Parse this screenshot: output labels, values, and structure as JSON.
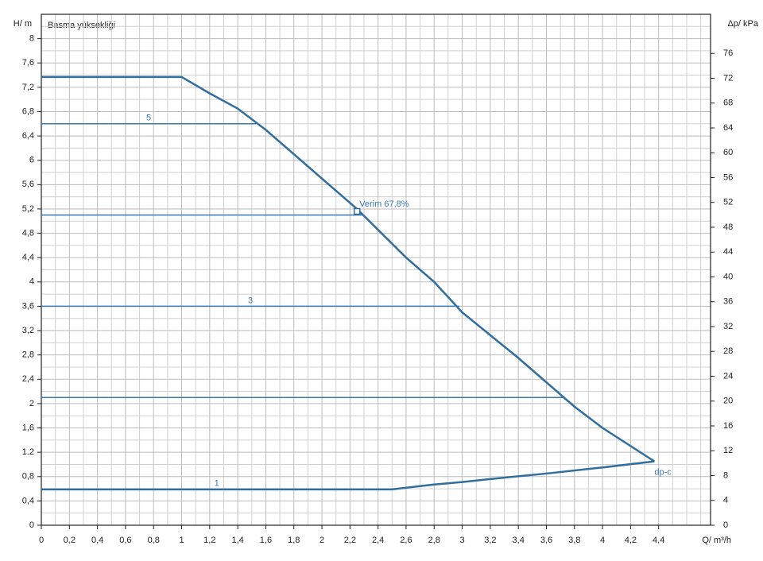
{
  "chart_data": {
    "type": "line",
    "title": "Basma yüksekliği",
    "x_label": "Q/ m³/h",
    "y_label": "H/ m",
    "y2_label": "Δp/ kPa",
    "xlim": [
      0,
      4.77
    ],
    "ylim": [
      0,
      8.4
    ],
    "y2lim": [
      0,
      82.3
    ],
    "grid": true,
    "xticks": [
      0,
      {
        "value": 0.2,
        "label": "0,2"
      },
      {
        "value": 0.4,
        "label": "0,4"
      },
      {
        "value": 0.6,
        "label": "0,6"
      },
      {
        "value": 0.8,
        "label": "0,8"
      },
      1,
      {
        "value": 1.2,
        "label": "1,2"
      },
      {
        "value": 1.4,
        "label": "1,4"
      },
      {
        "value": 1.6,
        "label": "1,6"
      },
      {
        "value": 1.8,
        "label": "1,8"
      },
      2,
      {
        "value": 2.2,
        "label": "2,2"
      },
      {
        "value": 2.4,
        "label": "2,4"
      },
      {
        "value": 2.6,
        "label": "2,6"
      },
      {
        "value": 2.8,
        "label": "2,8"
      },
      3,
      {
        "value": 3.2,
        "label": "3,2"
      },
      {
        "value": 3.4,
        "label": "3,4"
      },
      {
        "value": 3.6,
        "label": "3,6"
      },
      {
        "value": 3.8,
        "label": "3,8"
      },
      4,
      {
        "value": 4.2,
        "label": "4,2"
      },
      {
        "value": 4.4,
        "label": "4,4"
      }
    ],
    "yticks": [
      0,
      {
        "value": 0.4,
        "label": "0,4"
      },
      {
        "value": 0.8,
        "label": "0,8"
      },
      1.2,
      {
        "value": 1.6,
        "label": "1,6"
      },
      2,
      {
        "value": 2.4,
        "label": "2,4"
      },
      {
        "value": 2.8,
        "label": "2,8"
      },
      {
        "value": 3.2,
        "label": "3,2"
      },
      {
        "value": 3.6,
        "label": "3,6"
      },
      4,
      {
        "value": 4.4,
        "label": "4,4"
      },
      {
        "value": 4.8,
        "label": "4,8"
      },
      {
        "value": 5.2,
        "label": "5,2"
      },
      {
        "value": 5.6,
        "label": "5,6"
      },
      6,
      {
        "value": 6.4,
        "label": "6,4"
      },
      {
        "value": 6.8,
        "label": "6,8"
      },
      {
        "value": 7.2,
        "label": "7,2"
      },
      {
        "value": 7.6,
        "label": "7,6"
      },
      8
    ],
    "y2ticks": [
      0,
      4,
      8,
      12,
      16,
      20,
      24,
      28,
      32,
      36,
      40,
      44,
      48,
      52,
      56,
      60,
      64,
      68,
      72,
      76
    ],
    "series": [
      {
        "color": "#2f6e9e",
        "line_width": 2.5,
        "x": [
          0,
          1.0,
          1.2,
          1.4,
          1.6,
          2.0,
          2.25,
          2.6,
          2.8,
          3.0,
          3.4,
          3.8,
          4.0,
          4.37
        ],
        "values": [
          7.37,
          7.37,
          7.1,
          6.85,
          6.5,
          5.7,
          5.2,
          4.4,
          4.0,
          3.5,
          2.75,
          1.95,
          1.6,
          1.05
        ]
      },
      {
        "name": "1",
        "color": "#2f6e9e",
        "line_width": 2.5,
        "x": [
          0,
          2.5,
          2.8,
          3.0,
          3.2,
          3.6,
          4.0,
          4.37
        ],
        "values": [
          0.59,
          0.59,
          0.67,
          0.71,
          0.76,
          0.85,
          0.95,
          1.05
        ]
      },
      {
        "name": "5",
        "color": "#3b78ad",
        "line_width": 1.5,
        "x": [
          0,
          1.53
        ],
        "values": [
          6.6,
          6.6
        ]
      },
      {
        "color": "#3b78ad",
        "line_width": 1.5,
        "x": [
          0,
          2.3
        ],
        "values": [
          5.1,
          5.1
        ]
      },
      {
        "name": "3",
        "color": "#3b78ad",
        "line_width": 1.5,
        "x": [
          0,
          2.98
        ],
        "values": [
          3.6,
          3.6
        ]
      },
      {
        "color": "#3b78ad",
        "line_width": 1.5,
        "x": [
          0,
          3.72
        ],
        "values": [
          2.1,
          2.1
        ]
      }
    ],
    "operating_point": {
      "x": 2.25,
      "y": 5.16,
      "label": "Verim 67,8%"
    },
    "curve_label": "dp-c"
  }
}
